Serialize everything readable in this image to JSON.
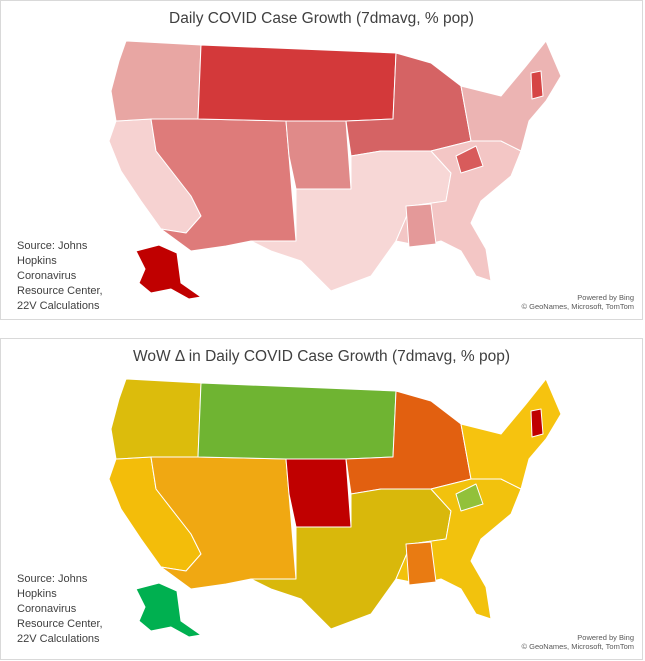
{
  "maps": [
    {
      "title": "Daily COVID Case Growth (7dmavg, % pop)",
      "source": "Source: Johns Hopkins Coronavirus Resource Center, 22V Calculations",
      "credit_line1": "Powered by Bing",
      "credit_line2": "© GeoNames, Microsoft, TomTom",
      "colors": {
        "northwest": "#e8a6a3",
        "west_coast": "#f6d2d1",
        "mountain": "#de7b7a",
        "northern_plains": "#d3393a",
        "central_plains": "#e08a89",
        "midwest": "#d56364",
        "south": "#f7d7d6",
        "southeast": "#f3c6c5",
        "northeast": "#ecb4b3",
        "alaska": "#c00000",
        "alabama": "#e49999",
        "west_virginia": "#d85b5b",
        "new_hampshire": "#d64545"
      }
    },
    {
      "title": "WoW Δ in Daily COVID Case Growth (7dmavg, % pop)",
      "source": "Source: Johns Hopkins Coronavirus Resource Center, 22V Calculations",
      "credit_line1": "Powered by Bing",
      "credit_line2": "© GeoNames, Microsoft, TomTom",
      "colors": {
        "northwest": "#dcbc0c",
        "west_coast": "#f3bd0a",
        "mountain": "#f0a812",
        "northern_plains": "#6fb432",
        "central_plains": "#c00000",
        "midwest": "#e26010",
        "south": "#d9b80b",
        "southeast": "#f2c20d",
        "northeast": "#f6c30f",
        "alaska": "#00b050",
        "alabama": "#e97b12",
        "west_virginia": "#92c13a",
        "new_hampshire": "#c00000"
      }
    }
  ]
}
